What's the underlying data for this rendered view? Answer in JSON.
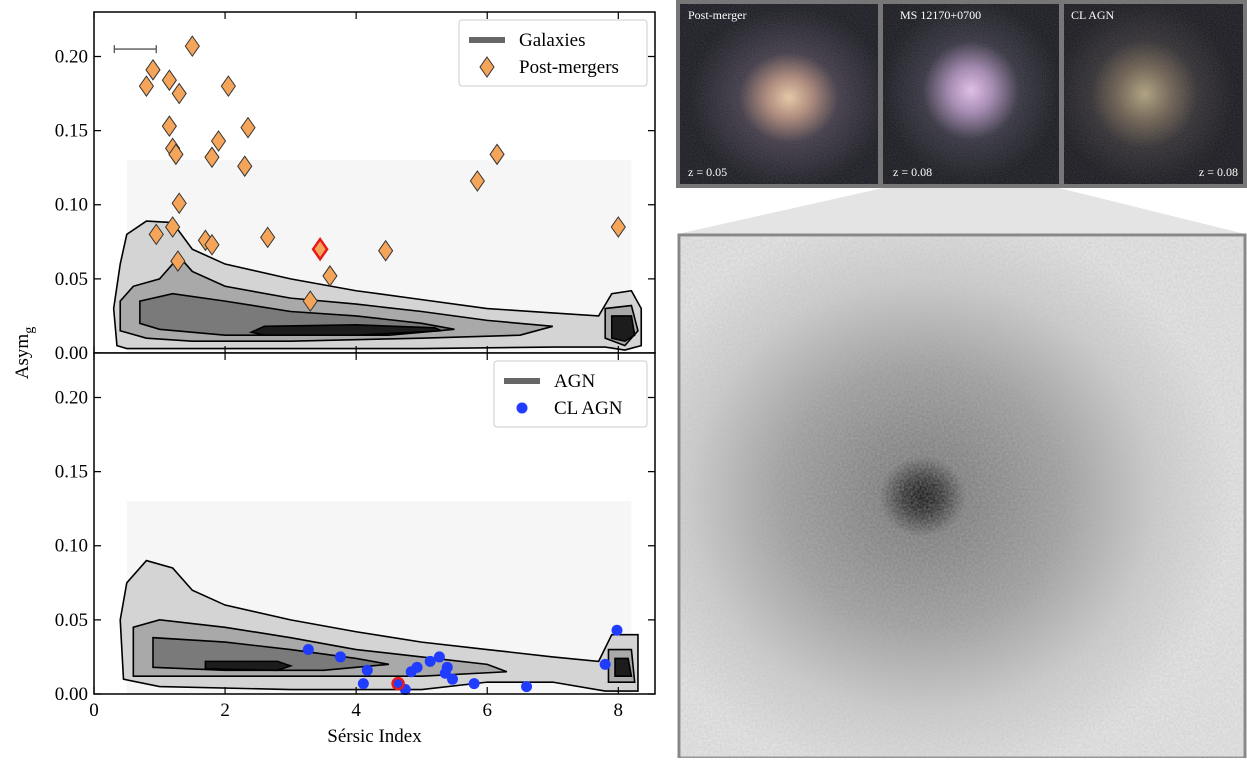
{
  "chart_data": [
    {
      "type": "scatter",
      "xlim": [
        0,
        8.56
      ],
      "xticks": [
        0,
        2,
        4,
        6,
        8
      ],
      "show_xticklabels": false,
      "ylim": [
        0,
        0.23
      ],
      "yticks": [
        {
          "value": 0,
          "label": "0.00"
        },
        {
          "value": 0.05,
          "label": "0.05"
        },
        {
          "value": 0.1,
          "label": "0.10"
        },
        {
          "value": 0.15,
          "label": "0.15"
        },
        {
          "value": 0.2,
          "label": "0.20"
        }
      ],
      "y_label": {
        "text": "Asym",
        "subscript": "g"
      },
      "legend": "upper right",
      "contours": {
        "name": "Galaxies",
        "legend_color": "#666666",
        "levels": [
          {
            "color": "#d4d4d4",
            "x": [
              0.35,
              0.3,
              0.4,
              0.5,
              0.8,
              1.2,
              1.5,
              2,
              3,
              4,
              5,
              6,
              7,
              7.7,
              7.9,
              8.2,
              8.35,
              8.35,
              8.1,
              7.8,
              7,
              5,
              3,
              1,
              0.5
            ],
            "y": [
              0.005,
              0.03,
              0.06,
              0.08,
              0.089,
              0.088,
              0.07,
              0.06,
              0.05,
              0.042,
              0.036,
              0.03,
              0.027,
              0.025,
              0.04,
              0.042,
              0.03,
              0.005,
              0.002,
              0.004,
              0.004,
              0.003,
              0.003,
              0.003,
              0.003
            ]
          },
          {
            "color": "#a9a9a9",
            "x": [
              0.4,
              0.4,
              0.6,
              1,
              1.3,
              1.5,
              2,
              3,
              4,
              5,
              6,
              7,
              6.5,
              5,
              3,
              1.5,
              0.8
            ],
            "y": [
              0.015,
              0.035,
              0.045,
              0.05,
              0.065,
              0.055,
              0.045,
              0.037,
              0.033,
              0.028,
              0.022,
              0.018,
              0.012,
              0.01,
              0.008,
              0.008,
              0.01
            ]
          },
          {
            "color": "#a9a9a9",
            "x": [
              7.8,
              7.8,
              8.2,
              8.3,
              8.1
            ],
            "y": [
              0.01,
              0.03,
              0.032,
              0.015,
              0.005
            ]
          },
          {
            "color": "#7a7a7a",
            "x": [
              0.7,
              0.7,
              1.2,
              2,
              3,
              4,
              5,
              5.5,
              4.5,
              3,
              2,
              1
            ],
            "y": [
              0.02,
              0.035,
              0.04,
              0.035,
              0.028,
              0.025,
              0.02,
              0.016,
              0.012,
              0.012,
              0.012,
              0.016
            ]
          },
          {
            "color": "#1c1c1c",
            "x": [
              2.4,
              2.6,
              4,
              5.2,
              5.3,
              4,
              2.6
            ],
            "y": [
              0.014,
              0.018,
              0.019,
              0.017,
              0.015,
              0.012,
              0.012
            ]
          },
          {
            "color": "#1c1c1c",
            "x": [
              7.9,
              7.9,
              8.2,
              8.25,
              8.1
            ],
            "y": [
              0.01,
              0.025,
              0.025,
              0.012,
              0.008
            ]
          }
        ]
      },
      "series": [
        {
          "name": "Post-mergers",
          "marker": "diamond",
          "color": "#f5a55a",
          "x": [
            0.8,
            0.9,
            1.15,
            1.5,
            1.3,
            2.05,
            1.15,
            1.2,
            1.25,
            1.9,
            2.35,
            1.8,
            2.3,
            6.15,
            5.85,
            1.3,
            0.95,
            1.2,
            1.7,
            1.8,
            2.65,
            1.28,
            3.45,
            4.45,
            3.6,
            3.3,
            8.0
          ],
          "y": [
            0.18,
            0.191,
            0.184,
            0.207,
            0.175,
            0.18,
            0.153,
            0.138,
            0.134,
            0.143,
            0.152,
            0.132,
            0.126,
            0.134,
            0.116,
            0.101,
            0.08,
            0.085,
            0.076,
            0.073,
            0.078,
            0.062,
            0.07,
            0.069,
            0.052,
            0.035,
            0.085
          ],
          "highlight_index": 22,
          "highlight_color": "#e8191b"
        }
      ],
      "error_bar": {
        "x": 0.63,
        "xerr": 0.32,
        "y": 0.205
      }
    },
    {
      "type": "scatter",
      "xlim": [
        0,
        8.56
      ],
      "xticks": [
        0,
        2,
        4,
        6,
        8
      ],
      "show_xticklabels": true,
      "x_label": "Sérsic Index",
      "ylim": [
        0,
        0.23
      ],
      "yticks": [
        {
          "value": 0,
          "label": "0.00"
        },
        {
          "value": 0.05,
          "label": "0.05"
        },
        {
          "value": 0.1,
          "label": "0.10"
        },
        {
          "value": 0.15,
          "label": "0.15"
        },
        {
          "value": 0.2,
          "label": "0.20"
        }
      ],
      "legend": "upper right",
      "contours": {
        "name": "AGN",
        "legend_color": "#666666",
        "levels": [
          {
            "color": "#d4d4d4",
            "x": [
              0.45,
              0.4,
              0.5,
              0.8,
              1.2,
              1.5,
              2,
              3,
              4,
              5,
              6,
              7,
              7.7,
              7.9,
              8.3,
              8.3,
              7.8,
              7,
              6,
              5,
              3,
              1
            ],
            "y": [
              0.01,
              0.05,
              0.075,
              0.09,
              0.085,
              0.07,
              0.06,
              0.05,
              0.042,
              0.035,
              0.03,
              0.025,
              0.022,
              0.04,
              0.04,
              0.002,
              0.002,
              0.008,
              0.008,
              0.003,
              0.003,
              0.005
            ]
          },
          {
            "color": "#a9a9a9",
            "x": [
              0.6,
              0.6,
              1,
              2,
              3,
              4,
              5,
              6,
              6.3,
              5,
              3,
              1.5
            ],
            "y": [
              0.012,
              0.045,
              0.05,
              0.045,
              0.038,
              0.03,
              0.025,
              0.02,
              0.015,
              0.012,
              0.012,
              0.012
            ]
          },
          {
            "color": "#a9a9a9",
            "x": [
              7.85,
              7.85,
              8.2,
              8.25
            ],
            "y": [
              0.008,
              0.03,
              0.03,
              0.008
            ]
          },
          {
            "color": "#7a7a7a",
            "x": [
              0.9,
              0.9,
              2,
              3,
              4,
              4.5,
              3.5,
              2
            ],
            "y": [
              0.018,
              0.038,
              0.035,
              0.03,
              0.024,
              0.02,
              0.016,
              0.016
            ]
          },
          {
            "color": "#1c1c1c",
            "x": [
              1.7,
              1.7,
              2.8,
              3,
              2.8
            ],
            "y": [
              0.017,
              0.022,
              0.022,
              0.019,
              0.016
            ]
          },
          {
            "color": "#1c1c1c",
            "x": [
              7.95,
              7.95,
              8.15,
              8.2
            ],
            "y": [
              0.012,
              0.024,
              0.024,
              0.012
            ]
          }
        ]
      },
      "series": [
        {
          "name": "CL AGN",
          "marker": "circle",
          "color": "#1f3cff",
          "x": [
            3.27,
            3.76,
            4.17,
            4.11,
            4.84,
            4.93,
            5.13,
            5.27,
            5.39,
            5.36,
            5.47,
            5.8,
            4.75,
            4.64,
            6.6,
            7.8,
            7.98
          ],
          "y": [
            0.03,
            0.025,
            0.016,
            0.007,
            0.015,
            0.018,
            0.022,
            0.025,
            0.018,
            0.014,
            0.01,
            0.007,
            0.003,
            0.007,
            0.005,
            0.02,
            0.043
          ],
          "highlight_index": 13,
          "highlight_color": "#e8191b"
        }
      ]
    }
  ],
  "images": {
    "thumbnails": [
      {
        "label": "Post-merger",
        "redshift": "z = 0.05"
      },
      {
        "label": "MS 12170+0700",
        "redshift": "z = 0.08"
      },
      {
        "label": "CL AGN",
        "redshift": "z = 0.08"
      }
    ]
  }
}
